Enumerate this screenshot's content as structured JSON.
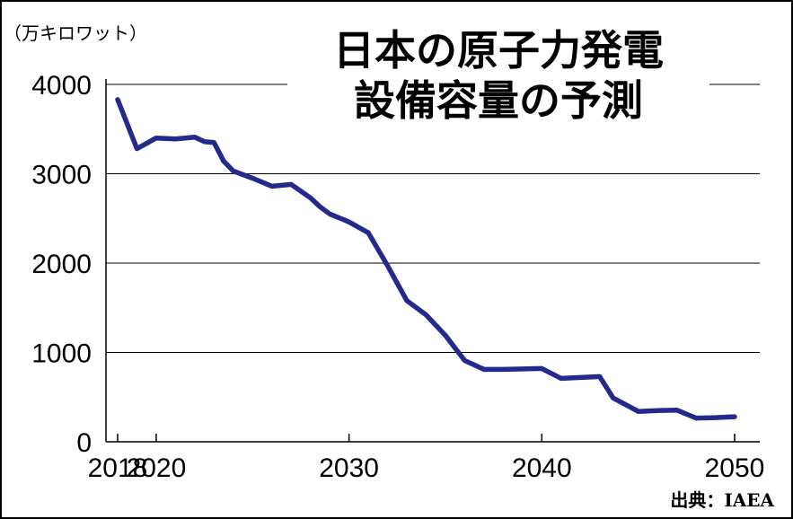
{
  "chart_data": {
    "type": "line",
    "title_lines": [
      "日本の原子力発電",
      "設備容量の予測"
    ],
    "unit_label": "（万キロワット）",
    "source": "出典：IAEA",
    "ylim": [
      0,
      4000
    ],
    "y_ticks": [
      0,
      1000,
      2000,
      3000,
      4000
    ],
    "y_tick_labels": [
      "0",
      "1000",
      "2000",
      "3000",
      "4000"
    ],
    "xlim": [
      2018,
      2050
    ],
    "x_ticks": [
      2018,
      2020,
      2030,
      2040,
      2050
    ],
    "x_tick_labels": [
      "2018",
      "2020",
      "2030",
      "2040",
      "2050"
    ],
    "grid": true,
    "line_color": "#232a8c",
    "series": [
      {
        "x": [
          2018,
          2019,
          2020,
          2021,
          2022,
          2022.5,
          2023,
          2023.5,
          2024,
          2025,
          2026,
          2027,
          2028,
          2028.5,
          2029,
          2030,
          2031,
          2032,
          2033,
          2034,
          2035,
          2036,
          2037,
          2038,
          2039,
          2040,
          2041,
          2042,
          2043,
          2043.7,
          2045,
          2046,
          2047,
          2048,
          2049,
          2050
        ],
        "y": [
          3830,
          3280,
          3400,
          3390,
          3410,
          3360,
          3350,
          3140,
          3030,
          2950,
          2860,
          2880,
          2730,
          2630,
          2550,
          2460,
          2340,
          1970,
          1580,
          1420,
          1190,
          910,
          810,
          810,
          815,
          820,
          710,
          720,
          730,
          490,
          340,
          350,
          355,
          265,
          270,
          280
        ]
      }
    ]
  }
}
